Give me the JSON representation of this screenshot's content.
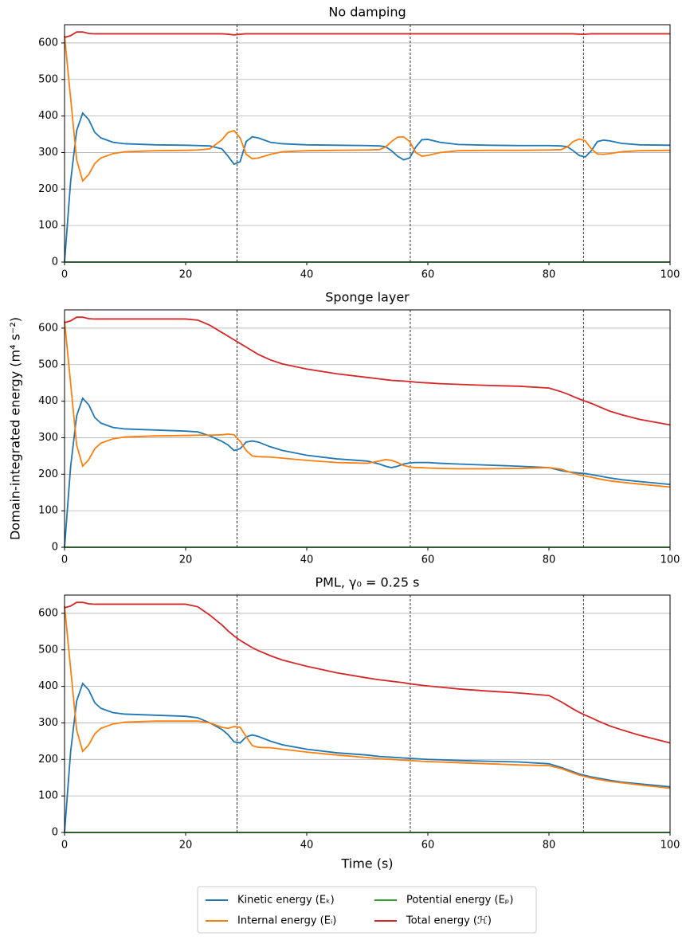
{
  "chart_data": [
    {
      "type": "line",
      "title": "No damping",
      "x": [
        0,
        1,
        2,
        3,
        4,
        5,
        6,
        8,
        10,
        15,
        20,
        22,
        24,
        26,
        27,
        28,
        29,
        30,
        31,
        32,
        34,
        36,
        40,
        45,
        50,
        52,
        53,
        54,
        55,
        56,
        57,
        58,
        59,
        60,
        62,
        65,
        70,
        75,
        80,
        82,
        83,
        84,
        85,
        86,
        87,
        88,
        89,
        90,
        92,
        95,
        100
      ],
      "series": [
        {
          "name": "Kinetic energy (Eₖ)",
          "color": "#1f77b4",
          "values": [
            0,
            220,
            360,
            408,
            390,
            355,
            340,
            328,
            324,
            321,
            320,
            319,
            318,
            310,
            290,
            268,
            275,
            330,
            343,
            340,
            328,
            324,
            321,
            320,
            319,
            318,
            316,
            305,
            290,
            280,
            285,
            315,
            335,
            336,
            328,
            322,
            320,
            319,
            319,
            318,
            316,
            305,
            292,
            288,
            305,
            330,
            334,
            332,
            325,
            321,
            320
          ]
        },
        {
          "name": "Internal energy (Eᵢ)",
          "color": "#ff7f0e",
          "values": [
            620,
            450,
            280,
            222,
            240,
            270,
            285,
            297,
            302,
            305,
            306,
            307,
            310,
            335,
            355,
            360,
            340,
            295,
            283,
            285,
            295,
            302,
            305,
            306,
            307,
            308,
            315,
            330,
            342,
            343,
            330,
            300,
            290,
            292,
            300,
            305,
            306,
            306,
            307,
            308,
            315,
            330,
            337,
            332,
            310,
            296,
            295,
            297,
            302,
            305,
            306
          ]
        },
        {
          "name": "Potential energy (Eₚ)",
          "color": "#2ca02c",
          "values": [
            0,
            0,
            0,
            0,
            0,
            0,
            0,
            0,
            0,
            0,
            0,
            0,
            0,
            0,
            0,
            0,
            0,
            0,
            0,
            0,
            0,
            0,
            0,
            0,
            0,
            0,
            0,
            0,
            0,
            0,
            0,
            0,
            0,
            0,
            0,
            0,
            0,
            0,
            0,
            0,
            0,
            0,
            0,
            0,
            0,
            0,
            0,
            0,
            0,
            0,
            0
          ]
        },
        {
          "name": "Total energy (ℋ)",
          "color": "#d62728",
          "values": [
            615,
            620,
            630,
            630,
            626,
            625,
            625,
            625,
            625,
            625,
            625,
            625,
            625,
            625,
            624,
            622,
            624,
            625,
            625,
            625,
            625,
            625,
            625,
            625,
            625,
            625,
            625,
            625,
            625,
            625,
            625,
            625,
            625,
            625,
            625,
            625,
            625,
            625,
            625,
            625,
            625,
            625,
            624,
            624,
            625,
            625,
            625,
            625,
            625,
            625,
            625
          ]
        }
      ],
      "xlim": [
        0,
        100
      ],
      "ylim": [
        0,
        650
      ],
      "xticks": [
        0,
        20,
        40,
        60,
        80,
        100
      ],
      "yticks": [
        0,
        100,
        200,
        300,
        400,
        500,
        600
      ],
      "grid": true,
      "vlines": [
        28.5,
        57.1,
        85.7
      ]
    },
    {
      "type": "line",
      "title": "Sponge layer",
      "ylabel": "Domain-integrated energy (m⁴ s⁻²)",
      "x": [
        0,
        1,
        2,
        3,
        4,
        5,
        6,
        8,
        10,
        15,
        20,
        22,
        24,
        26,
        27,
        28,
        29,
        30,
        31,
        32,
        34,
        36,
        40,
        45,
        50,
        52,
        53,
        54,
        55,
        56,
        57,
        58,
        59,
        60,
        62,
        65,
        70,
        75,
        80,
        82,
        83,
        84,
        85,
        86,
        87,
        88,
        89,
        90,
        92,
        95,
        100
      ],
      "series": [
        {
          "name": "Kinetic energy (Eₖ)",
          "color": "#1f77b4",
          "values": [
            0,
            220,
            360,
            408,
            390,
            355,
            340,
            328,
            324,
            321,
            318,
            316,
            305,
            290,
            280,
            265,
            270,
            288,
            291,
            288,
            275,
            265,
            252,
            242,
            236,
            228,
            222,
            218,
            222,
            228,
            231,
            232,
            232,
            232,
            230,
            228,
            225,
            222,
            218,
            210,
            207,
            205,
            203,
            202,
            199,
            196,
            193,
            190,
            185,
            180,
            172
          ]
        },
        {
          "name": "Internal energy (Eᵢ)",
          "color": "#ff7f0e",
          "values": [
            620,
            450,
            280,
            222,
            240,
            270,
            285,
            297,
            302,
            305,
            306,
            307,
            307,
            308,
            310,
            308,
            290,
            265,
            250,
            248,
            247,
            244,
            238,
            232,
            230,
            236,
            240,
            238,
            232,
            224,
            220,
            218,
            218,
            217,
            216,
            215,
            215,
            216,
            218,
            214,
            208,
            203,
            198,
            195,
            192,
            188,
            185,
            182,
            178,
            173,
            165
          ]
        },
        {
          "name": "Potential energy (Eₚ)",
          "color": "#2ca02c",
          "values": [
            0,
            0,
            0,
            0,
            0,
            0,
            0,
            0,
            0,
            0,
            0,
            0,
            0,
            0,
            0,
            0,
            0,
            0,
            0,
            0,
            0,
            0,
            0,
            0,
            0,
            0,
            0,
            0,
            0,
            0,
            0,
            0,
            0,
            0,
            0,
            0,
            0,
            0,
            0,
            0,
            0,
            0,
            0,
            0,
            0,
            0,
            0,
            0,
            0,
            0,
            0
          ]
        },
        {
          "name": "Total energy (ℋ)",
          "color": "#d62728",
          "values": [
            615,
            620,
            630,
            630,
            626,
            625,
            625,
            625,
            625,
            625,
            625,
            622,
            608,
            588,
            578,
            568,
            558,
            548,
            538,
            528,
            513,
            502,
            488,
            475,
            465,
            461,
            459,
            457,
            456,
            455,
            454,
            452,
            451,
            450,
            448,
            446,
            443,
            441,
            436,
            426,
            420,
            413,
            406,
            400,
            394,
            387,
            380,
            373,
            363,
            350,
            335
          ]
        }
      ],
      "xlim": [
        0,
        100
      ],
      "ylim": [
        0,
        650
      ],
      "xticks": [
        0,
        20,
        40,
        60,
        80,
        100
      ],
      "yticks": [
        0,
        100,
        200,
        300,
        400,
        500,
        600
      ],
      "grid": true,
      "vlines": [
        28.5,
        57.1,
        85.7
      ]
    },
    {
      "type": "line",
      "title": "PML, γ₀ = 0.25 s",
      "xlabel": "Time (s)",
      "x": [
        0,
        1,
        2,
        3,
        4,
        5,
        6,
        8,
        10,
        15,
        20,
        22,
        24,
        26,
        27,
        28,
        29,
        30,
        31,
        32,
        34,
        36,
        40,
        45,
        50,
        52,
        53,
        54,
        55,
        56,
        57,
        58,
        59,
        60,
        62,
        65,
        70,
        75,
        80,
        82,
        83,
        84,
        85,
        86,
        87,
        88,
        89,
        90,
        92,
        95,
        100
      ],
      "series": [
        {
          "name": "Kinetic energy (Eₖ)",
          "color": "#1f77b4",
          "values": [
            0,
            220,
            360,
            408,
            390,
            355,
            340,
            328,
            324,
            321,
            318,
            314,
            300,
            282,
            268,
            248,
            245,
            262,
            267,
            263,
            250,
            240,
            228,
            218,
            212,
            208,
            207,
            206,
            205,
            204,
            203,
            202,
            201,
            200,
            199,
            197,
            195,
            193,
            188,
            178,
            172,
            166,
            160,
            156,
            152,
            149,
            146,
            143,
            138,
            133,
            125
          ]
        },
        {
          "name": "Internal energy (Eᵢ)",
          "color": "#ff7f0e",
          "values": [
            620,
            450,
            280,
            222,
            240,
            270,
            285,
            297,
            302,
            305,
            305,
            305,
            300,
            288,
            285,
            290,
            288,
            262,
            238,
            233,
            232,
            228,
            220,
            212,
            205,
            202,
            201,
            200,
            199,
            198,
            197,
            196,
            195,
            194,
            193,
            191,
            188,
            185,
            183,
            175,
            169,
            163,
            157,
            153,
            149,
            146,
            143,
            140,
            136,
            130,
            121
          ]
        },
        {
          "name": "Potential energy (Eₚ)",
          "color": "#2ca02c",
          "values": [
            0,
            0,
            0,
            0,
            0,
            0,
            0,
            0,
            0,
            0,
            0,
            0,
            0,
            0,
            0,
            0,
            0,
            0,
            0,
            0,
            0,
            0,
            0,
            0,
            0,
            0,
            0,
            0,
            0,
            0,
            0,
            0,
            0,
            0,
            0,
            0,
            0,
            0,
            0,
            0,
            0,
            0,
            0,
            0,
            0,
            0,
            0,
            0,
            0,
            0,
            0
          ]
        },
        {
          "name": "Total energy (ℋ)",
          "color": "#d62728",
          "values": [
            615,
            620,
            630,
            630,
            626,
            625,
            625,
            625,
            625,
            625,
            625,
            618,
            595,
            568,
            552,
            538,
            526,
            516,
            506,
            498,
            484,
            472,
            455,
            437,
            423,
            418,
            416,
            414,
            412,
            410,
            407,
            405,
            403,
            401,
            398,
            393,
            387,
            382,
            375,
            358,
            348,
            338,
            329,
            321,
            314,
            306,
            299,
            292,
            281,
            266,
            245
          ]
        }
      ],
      "xlim": [
        0,
        100
      ],
      "ylim": [
        0,
        650
      ],
      "xticks": [
        0,
        20,
        40,
        60,
        80,
        100
      ],
      "yticks": [
        0,
        100,
        200,
        300,
        400,
        500,
        600
      ],
      "grid": true,
      "vlines": [
        28.5,
        57.1,
        85.7
      ]
    }
  ]
}
